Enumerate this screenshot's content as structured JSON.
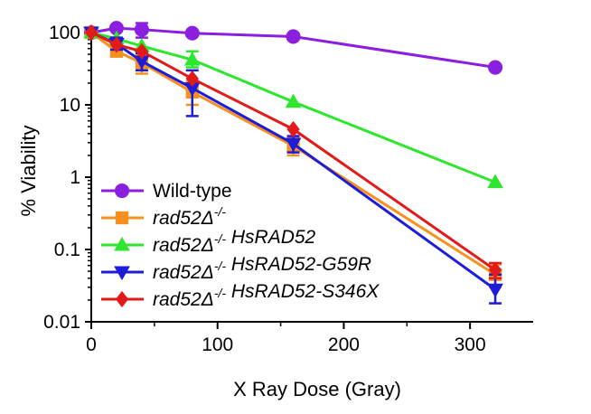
{
  "chart_data": {
    "type": "line",
    "title": "",
    "xlabel": "X Ray Dose (Gray)",
    "ylabel": "% Viability",
    "xlim": [
      0,
      350
    ],
    "ylim": [
      0.01,
      100
    ],
    "yscale": "log",
    "grid": false,
    "legend_position": "lower-left",
    "xticks": [
      0,
      100,
      200,
      300
    ],
    "xtick_labels": [
      "0",
      "100",
      "200",
      "300"
    ],
    "yticks": [
      0.01,
      0.1,
      1,
      10,
      100
    ],
    "ytick_labels": [
      "0.01",
      "0.1",
      "1",
      "10",
      "100"
    ],
    "series": [
      {
        "name": "Wild-type",
        "name_parts": [
          {
            "t": "Wild-type",
            "style": "normal"
          }
        ],
        "color": "#8a1fe0",
        "marker": "circle",
        "x": [
          0,
          20,
          40,
          80,
          160,
          320
        ],
        "y": [
          100,
          115,
          110,
          98,
          88,
          33
        ],
        "err_low": [
          null,
          null,
          85,
          null,
          null,
          null
        ],
        "err_high": [
          null,
          null,
          135,
          null,
          null,
          null
        ]
      },
      {
        "name": "rad52Δ-/-",
        "name_parts": [
          {
            "t": "rad52Δ",
            "style": "italic"
          },
          {
            "t": "-/-",
            "style": "sup-italic"
          }
        ],
        "color": "#f7901e",
        "marker": "square",
        "x": [
          0,
          20,
          40,
          80,
          160,
          320
        ],
        "y": [
          100,
          55,
          38,
          15,
          2.7,
          0.045
        ],
        "err_low": [
          null,
          48,
          27,
          10,
          2.0,
          0.03
        ],
        "err_high": [
          null,
          62,
          50,
          21,
          3.6,
          0.062
        ]
      },
      {
        "name": "rad52Δ-/- HsRAD52",
        "name_parts": [
          {
            "t": "rad52Δ",
            "style": "italic"
          },
          {
            "t": "-/-",
            "style": "sup-italic"
          },
          {
            "t": " HsRAD52",
            "style": "italic"
          }
        ],
        "color": "#2ee62e",
        "marker": "triangle-up",
        "x": [
          0,
          20,
          40,
          80,
          160,
          320
        ],
        "y": [
          100,
          82,
          65,
          42,
          11,
          0.85
        ],
        "err_low": [
          null,
          null,
          null,
          33,
          null,
          null
        ],
        "err_high": [
          null,
          null,
          null,
          55,
          null,
          null
        ]
      },
      {
        "name": "rad52Δ-/- HsRAD52-G59R",
        "name_parts": [
          {
            "t": "rad52Δ",
            "style": "italic"
          },
          {
            "t": "-/-",
            "style": "sup-italic"
          },
          {
            "t": " HsRAD52-G59R",
            "style": "italic"
          }
        ],
        "color": "#1c1cd9",
        "marker": "triangle-down",
        "x": [
          0,
          20,
          40,
          80,
          160,
          320
        ],
        "y": [
          100,
          70,
          40,
          17,
          2.9,
          0.028
        ],
        "err_low": [
          null,
          58,
          30,
          7,
          2.2,
          0.018
        ],
        "err_high": [
          null,
          85,
          52,
          30,
          3.7,
          0.045
        ]
      },
      {
        "name": "rad52Δ-/- HsRAD52-S346X",
        "name_parts": [
          {
            "t": "rad52Δ",
            "style": "italic"
          },
          {
            "t": "-/-",
            "style": "sup-italic"
          },
          {
            "t": " HsRAD52-S346X",
            "style": "italic"
          }
        ],
        "color": "#e31a1a",
        "marker": "diamond",
        "x": [
          0,
          20,
          40,
          80,
          160,
          320
        ],
        "y": [
          100,
          68,
          55,
          23,
          4.6,
          0.052
        ],
        "err_low": [
          null,
          null,
          null,
          null,
          null,
          0.04
        ],
        "err_high": [
          null,
          null,
          null,
          null,
          null,
          0.065
        ]
      }
    ]
  }
}
